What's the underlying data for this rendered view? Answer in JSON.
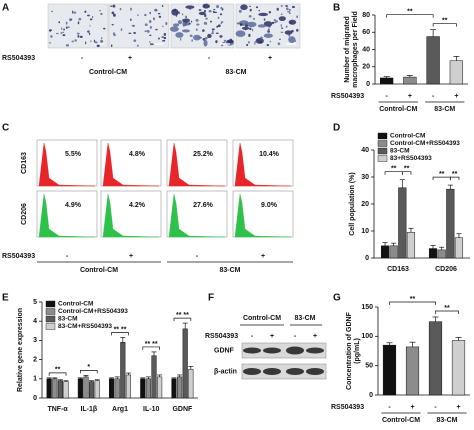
{
  "panel_labels": {
    "a": "A",
    "b": "B",
    "c": "C",
    "d": "D",
    "e": "E",
    "f": "F",
    "g": "G"
  },
  "panel_a": {
    "treatment_label": "RS504393",
    "signs": [
      "-",
      "+",
      "-",
      "+"
    ],
    "groups": [
      "Control-CM",
      "83-CM"
    ]
  },
  "panel_c": {
    "markers": [
      "CD163",
      "CD206"
    ],
    "percentages": [
      [
        "5.5%",
        "4.8%",
        "25.2%",
        "10.4%"
      ],
      [
        "4.9%",
        "4.2%",
        "27.6%",
        "9.0%"
      ]
    ],
    "treatment_label": "RS504393",
    "signs": [
      "-",
      "+",
      "-",
      "+"
    ],
    "groups": [
      "Control-CM",
      "83-CM"
    ]
  },
  "panel_f": {
    "groups": [
      "Control-CM",
      "83-CM"
    ],
    "treatment_label": "RS504393",
    "signs": [
      "-",
      "+",
      "-",
      "+"
    ],
    "bands": [
      "GDNF",
      "β-actin"
    ]
  },
  "chart_data": [
    {
      "type": "bar",
      "ylabel": [
        "Number of migrated",
        "macrophages per Field"
      ],
      "categories": [
        "-",
        "+",
        "-",
        "+"
      ],
      "values": [
        7,
        8,
        55,
        27
      ],
      "errors": [
        1.5,
        2,
        8,
        5
      ],
      "colors": [
        "#111111",
        "#8c8c8c",
        "#5a5a5a",
        "#cfcfcf"
      ],
      "ylim": [
        0,
        80
      ],
      "yticks": [
        0,
        20,
        40,
        60,
        80
      ],
      "treatment_label": "RS504393",
      "groups": [
        "Control-CM",
        "83-CM"
      ],
      "annotations": [
        "**",
        "**"
      ]
    },
    {
      "type": "grouped_bar",
      "ylabel": "Cell population (%)",
      "categories": [
        "CD163",
        "CD206"
      ],
      "series": [
        {
          "name": "Control-CM",
          "color": "#111111",
          "values": [
            4.5,
            3.5
          ],
          "errors": [
            1.2,
            1.2
          ]
        },
        {
          "name": "Control-CM+RS504393",
          "color": "#8c8c8c",
          "values": [
            4.5,
            3
          ],
          "errors": [
            1,
            1
          ]
        },
        {
          "name": "83-CM",
          "color": "#5a5a5a",
          "values": [
            26,
            25.5
          ],
          "errors": [
            3,
            1.5
          ]
        },
        {
          "name": "83+RS504393",
          "color": "#cfcfcf",
          "values": [
            9.5,
            7.5
          ],
          "errors": [
            1.5,
            1.5
          ]
        }
      ],
      "ylim": [
        0,
        40
      ],
      "yticks": [
        0,
        10,
        20,
        30,
        40
      ],
      "annotations": [
        "**",
        "**",
        "**",
        "**"
      ]
    },
    {
      "type": "grouped_bar",
      "ylabel": "Relative gene expression",
      "categories": [
        "TNF-α",
        "IL-1β",
        "Arg1",
        "IL-10",
        "GDNF"
      ],
      "series": [
        {
          "name": "Control-CM",
          "color": "#111111",
          "values": [
            1,
            1,
            1,
            1,
            1
          ],
          "errors": [
            0.05,
            0.05,
            0.05,
            0.05,
            0.05
          ]
        },
        {
          "name": "Control-CM+RS504393",
          "color": "#8c8c8c",
          "values": [
            1,
            1.1,
            1,
            1,
            1.1
          ],
          "errors": [
            0.05,
            0.08,
            0.1,
            0.1,
            0.1
          ]
        },
        {
          "name": "83-CM",
          "color": "#5a5a5a",
          "values": [
            0.9,
            0.85,
            2.9,
            2.2,
            3.6
          ],
          "errors": [
            0.05,
            0.05,
            0.25,
            0.2,
            0.3
          ]
        },
        {
          "name": "83-CM+RS504393",
          "color": "#cfcfcf",
          "values": [
            0.85,
            0.9,
            1.2,
            1.1,
            1.5
          ],
          "errors": [
            0.05,
            0.05,
            0.1,
            0.1,
            0.15
          ]
        }
      ],
      "ylim": [
        0,
        5
      ],
      "yticks": [
        0,
        1,
        2,
        3,
        4,
        5
      ],
      "annotations": [
        "**",
        "*",
        "** **",
        "** **",
        "** **"
      ]
    },
    {
      "type": "bar",
      "ylabel": [
        "Concentration of GDNF",
        "(pg/mL)"
      ],
      "categories": [
        "-",
        "+",
        "-",
        "+"
      ],
      "values": [
        85,
        82,
        125,
        93
      ],
      "errors": [
        4,
        8,
        8,
        5
      ],
      "colors": [
        "#111111",
        "#8c8c8c",
        "#5a5a5a",
        "#cfcfcf"
      ],
      "ylim": [
        0,
        150
      ],
      "yticks": [
        0,
        50,
        100,
        150
      ],
      "treatment_label": "RS504393",
      "groups": [
        "Control-CM",
        "83-CM"
      ],
      "annotations": [
        "**",
        "**"
      ]
    }
  ]
}
